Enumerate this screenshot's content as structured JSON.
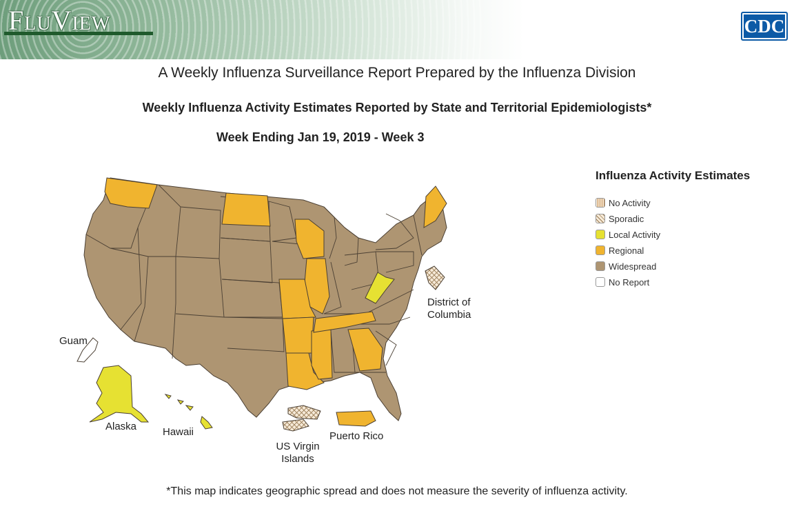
{
  "header": {
    "logo_text": "FluView",
    "agency_logo_text": "CDC"
  },
  "titles": {
    "main": "A Weekly Influenza Surveillance Report Prepared by the Influenza Division",
    "subtitle": "Weekly Influenza Activity Estimates Reported by State and Territorial Epidemiologists*",
    "week": "Week Ending Jan 19, 2019 - Week 3"
  },
  "legend": {
    "title": "Influenza Activity Estimates",
    "items": [
      {
        "label": "No Activity",
        "color": "#f6ead8",
        "pattern": "lines"
      },
      {
        "label": "Sporadic",
        "color": "#f6ead8",
        "pattern": "cross"
      },
      {
        "label": "Local Activity",
        "color": "#e6e132",
        "pattern": "none"
      },
      {
        "label": "Regional",
        "color": "#f0b42f",
        "pattern": "none"
      },
      {
        "label": "Widespread",
        "color": "#ae9572",
        "pattern": "none"
      },
      {
        "label": "No Report",
        "color": "#ffffff",
        "pattern": "none"
      }
    ]
  },
  "map_labels": {
    "dc": "District of Columbia",
    "guam": "Guam",
    "alaska": "Alaska",
    "hawaii": "Hawaii",
    "usvi": "US Virgin Islands",
    "puerto_rico": "Puerto Rico"
  },
  "activity_by_region": {
    "Regional": [
      "Washington",
      "North Dakota",
      "Wisconsin",
      "Illinois",
      "Missouri",
      "Arkansas",
      "Louisiana",
      "Mississippi",
      "Tennessee",
      "Georgia",
      "Maine",
      "Puerto Rico"
    ],
    "Local Activity": [
      "West Virginia",
      "Alaska",
      "Hawaii"
    ],
    "Sporadic": [
      "District of Columbia",
      "US Virgin Islands"
    ],
    "No Report": [
      "Guam"
    ],
    "Widespread": [
      "All other states"
    ]
  },
  "footnote": "*This map indicates geographic spread and does not measure the severity of influenza activity."
}
